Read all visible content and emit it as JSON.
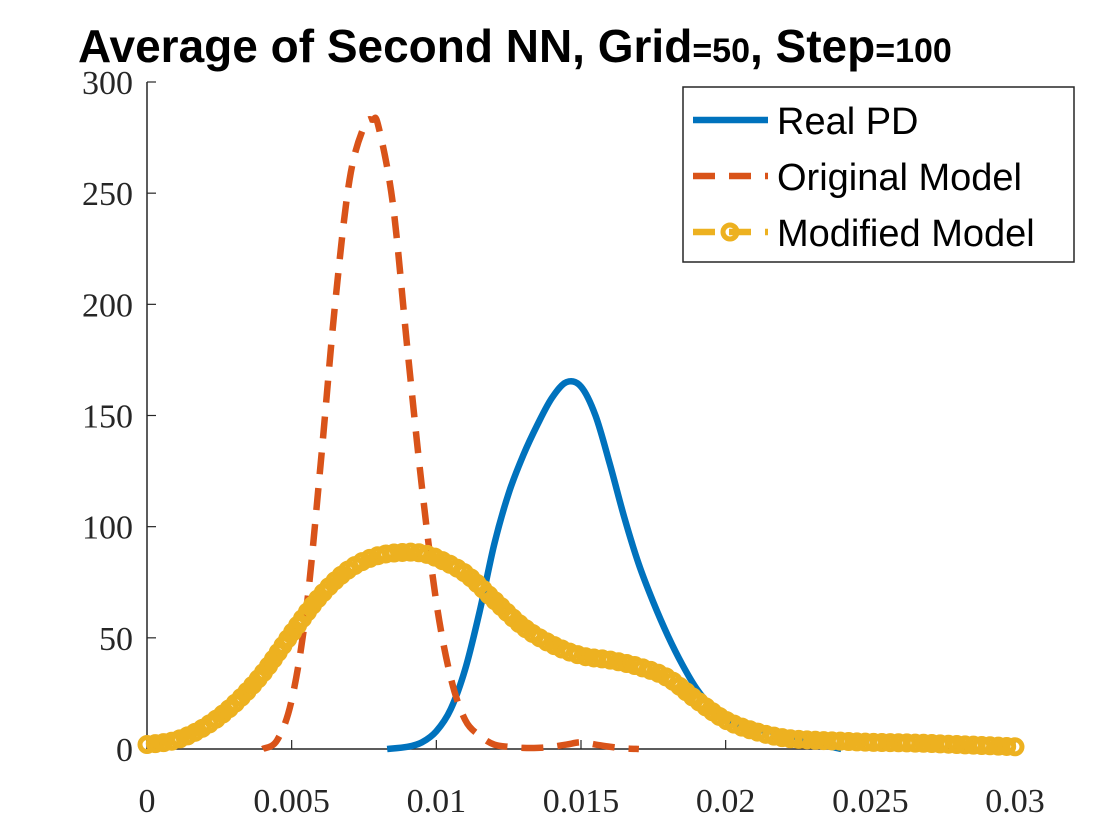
{
  "colors": {
    "real": "#0072BD",
    "original": "#D95319",
    "modified": "#EDB120",
    "axis": "#262626"
  },
  "chart_data": {
    "type": "line",
    "title": "Average of Second NN, Grid=50, Step=100",
    "title_parts": {
      "main": "Average of Second NN, Grid",
      "eq1": "=50",
      "mid": ", Step",
      "eq2": "=100"
    },
    "xlabel": "",
    "ylabel": "",
    "xlim": [
      0,
      0.03
    ],
    "ylim": [
      0,
      300
    ],
    "xticks": [
      "0",
      "0.005",
      "0.01",
      "0.015",
      "0.02",
      "0.025",
      "0.03"
    ],
    "yticks": [
      "0",
      "50",
      "100",
      "150",
      "200",
      "250",
      "300"
    ],
    "grid": false,
    "legend_position": "top-right",
    "series": [
      {
        "name": "Real PD",
        "style": "solid",
        "x": [
          0.0083,
          0.009,
          0.0095,
          0.01,
          0.0105,
          0.011,
          0.0115,
          0.012,
          0.0125,
          0.013,
          0.0135,
          0.014,
          0.0145,
          0.015,
          0.0155,
          0.016,
          0.0165,
          0.017,
          0.0175,
          0.018,
          0.0185,
          0.019,
          0.0195,
          0.02,
          0.021,
          0.022,
          0.023,
          0.024
        ],
        "y": [
          0,
          1,
          3,
          8,
          18,
          36,
          62,
          92,
          115,
          132,
          146,
          158,
          165,
          163,
          150,
          128,
          104,
          83,
          66,
          51,
          38,
          27,
          19,
          13,
          9,
          7,
          3,
          0
        ]
      },
      {
        "name": "Original Model",
        "style": "dashed",
        "x": [
          0.004,
          0.0045,
          0.005,
          0.0055,
          0.006,
          0.0065,
          0.007,
          0.0075,
          0.0078,
          0.008,
          0.0085,
          0.009,
          0.0095,
          0.01,
          0.0105,
          0.011,
          0.0115,
          0.012,
          0.0125,
          0.013,
          0.0135,
          0.014,
          0.0145,
          0.015,
          0.0155,
          0.016,
          0.0165,
          0.017
        ],
        "y": [
          0,
          4,
          22,
          62,
          128,
          200,
          256,
          280,
          283,
          280,
          245,
          180,
          118,
          66,
          32,
          13,
          6,
          2,
          1,
          0.5,
          0.5,
          1,
          2,
          3,
          2,
          1,
          0.3,
          0
        ]
      },
      {
        "name": "Modified Model",
        "style": "dashed-circles",
        "x": [
          0,
          0.001,
          0.002,
          0.003,
          0.004,
          0.005,
          0.006,
          0.007,
          0.008,
          0.009,
          0.0095,
          0.01,
          0.011,
          0.012,
          0.013,
          0.014,
          0.015,
          0.016,
          0.017,
          0.018,
          0.019,
          0.02,
          0.021,
          0.022,
          0.023,
          0.024,
          0.025,
          0.026,
          0.027,
          0.028,
          0.029,
          0.03
        ],
        "y": [
          2,
          4,
          10,
          20,
          34,
          52,
          69,
          81,
          87,
          88.5,
          88,
          86,
          79,
          67,
          55,
          47,
          42,
          40,
          37,
          32,
          22,
          13,
          8,
          5,
          4,
          3.5,
          3,
          2.8,
          2.5,
          2,
          1.5,
          1
        ]
      }
    ]
  }
}
